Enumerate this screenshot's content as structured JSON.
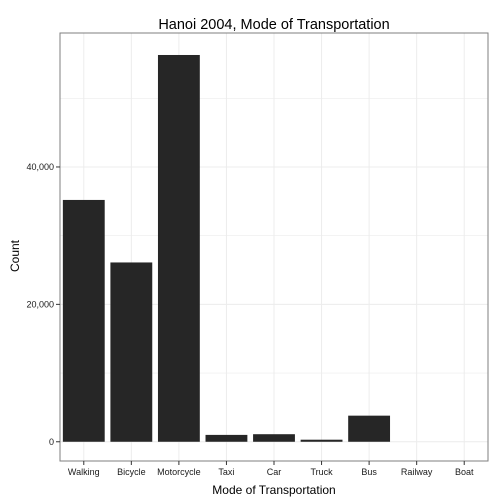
{
  "chart_data": {
    "type": "bar",
    "title": "Hanoi 2004, Mode of Transportation",
    "xlabel": "Mode of Transportation",
    "ylabel": "Count",
    "categories": [
      "Walking",
      "Bicycle",
      "Motorcycle",
      "Taxi",
      "Car",
      "Truck",
      "Bus",
      "Railway",
      "Boat"
    ],
    "values": [
      35200,
      26100,
      56300,
      1000,
      1100,
      300,
      3800,
      0,
      0
    ],
    "ylim": [
      -2800,
      59500
    ],
    "yticks": [
      0,
      20000,
      40000
    ],
    "ytick_labels": [
      "0",
      "20,000",
      "40,000"
    ],
    "grid": true,
    "bar_color": "#262626",
    "grid_color": "#ececec",
    "border_color": "#7f7f7f"
  }
}
